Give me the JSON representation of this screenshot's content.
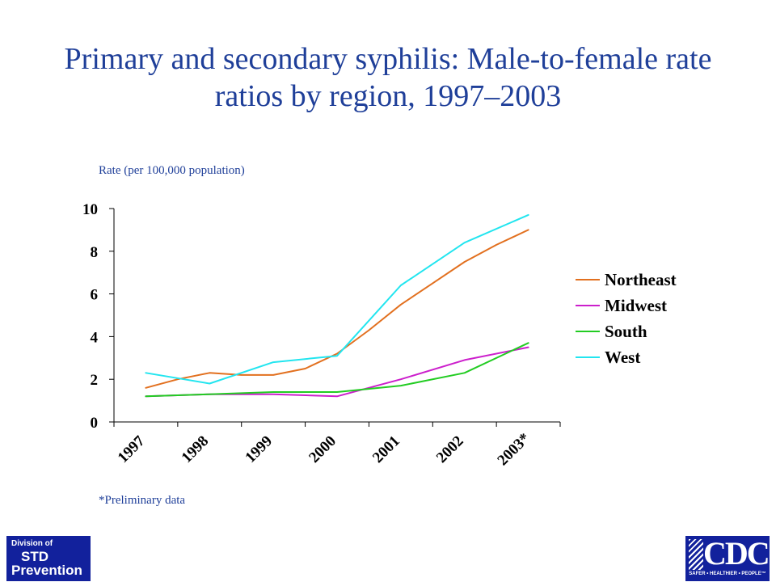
{
  "slide": {
    "title": "Primary and secondary syphilis: Male-to-female rate ratios by region, 1997–2003",
    "footnote": "*Preliminary data"
  },
  "logos": {
    "left": {
      "line1": "Division of",
      "line2": "STD",
      "line3": "Prevention"
    },
    "right": {
      "text": "CDC",
      "tagline": "SAFER • HEALTHIER • PEOPLE™"
    }
  },
  "chart_data": {
    "type": "line",
    "title": "Primary and secondary syphilis: Male-to-female rate ratios by region, 1997–2003",
    "ylabel": "Rate (per 100,000 population)",
    "xlabel": "",
    "categories": [
      "1997",
      "1998",
      "1999",
      "2000",
      "2001",
      "2002",
      "2003*"
    ],
    "ylim": [
      0,
      10
    ],
    "yticks": [
      0,
      2,
      4,
      6,
      8,
      10
    ],
    "grid": false,
    "legend_position": "right",
    "series": [
      {
        "name": "Northeast",
        "color": "#e2701f",
        "x": [
          0,
          0.5,
          1,
          1.5,
          2,
          2.5,
          3,
          3.5,
          4,
          4.5,
          5,
          5.5,
          6
        ],
        "values": [
          1.6,
          2.0,
          2.3,
          2.2,
          2.2,
          2.5,
          3.2,
          4.3,
          5.5,
          6.5,
          7.5,
          8.3,
          9.0
        ]
      },
      {
        "name": "Midwest",
        "color": "#cc1fcc",
        "x": [
          0,
          1,
          2,
          3,
          4,
          5,
          6
        ],
        "values": [
          1.2,
          1.3,
          1.3,
          1.2,
          2.0,
          2.9,
          3.5
        ]
      },
      {
        "name": "South",
        "color": "#22cc22",
        "x": [
          0,
          1,
          2,
          3,
          4,
          5,
          6
        ],
        "values": [
          1.2,
          1.3,
          1.4,
          1.4,
          1.7,
          2.3,
          3.7
        ]
      },
      {
        "name": "West",
        "color": "#22e5ef",
        "x": [
          0,
          1,
          2,
          3,
          4,
          5,
          6
        ],
        "values": [
          2.3,
          1.8,
          2.8,
          3.1,
          6.4,
          8.4,
          9.7
        ]
      }
    ]
  }
}
